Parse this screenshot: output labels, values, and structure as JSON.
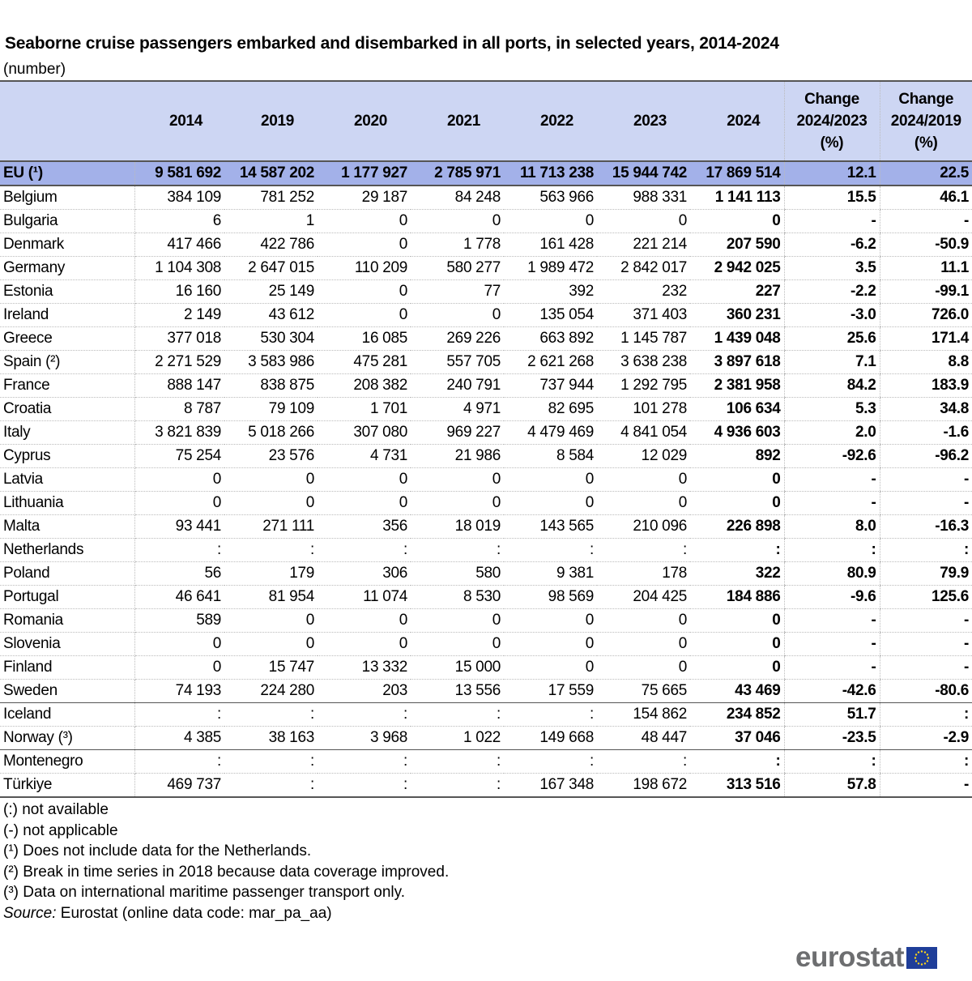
{
  "title": "Seaborne cruise passengers embarked and disembarked in all ports, in selected years, 2014-2024",
  "unit": "(number)",
  "colors": {
    "header_bg": "#cdd6f3",
    "eu_row_bg": "#a3b1e9",
    "logo_text": "#6d6e70",
    "flag": "#1f3e99"
  },
  "chart_data": {
    "type": "table",
    "columns": [
      "2014",
      "2019",
      "2020",
      "2021",
      "2022",
      "2023",
      "2024",
      "Change 2024/2023 (%)",
      "Change 2024/2019 (%)"
    ],
    "column_lines": [
      [
        "2014"
      ],
      [
        "2019"
      ],
      [
        "2020"
      ],
      [
        "2021"
      ],
      [
        "2022"
      ],
      [
        "2023"
      ],
      [
        "2024"
      ],
      [
        "Change",
        "2024/2023",
        "(%)"
      ],
      [
        "Change",
        "2024/2019",
        "(%)"
      ]
    ],
    "rows": [
      {
        "label": "EU (¹)",
        "values": [
          "9 581 692",
          "14 587 202",
          "1 177 927",
          "2 785 971",
          "11 713 238",
          "15 944 742",
          "17 869 514",
          "12.1",
          "22.5"
        ]
      },
      {
        "label": "Belgium",
        "values": [
          "384 109",
          "781 252",
          "29 187",
          "84 248",
          "563 966",
          "988 331",
          "1 141 113",
          "15.5",
          "46.1"
        ]
      },
      {
        "label": "Bulgaria",
        "values": [
          "6",
          "1",
          "0",
          "0",
          "0",
          "0",
          "0",
          "-",
          "-"
        ]
      },
      {
        "label": "Denmark",
        "values": [
          "417 466",
          "422 786",
          "0",
          "1 778",
          "161 428",
          "221 214",
          "207 590",
          "-6.2",
          "-50.9"
        ]
      },
      {
        "label": "Germany",
        "values": [
          "1 104 308",
          "2 647 015",
          "110 209",
          "580 277",
          "1 989 472",
          "2 842 017",
          "2 942 025",
          "3.5",
          "11.1"
        ]
      },
      {
        "label": "Estonia",
        "values": [
          "16 160",
          "25 149",
          "0",
          "77",
          "392",
          "232",
          "227",
          "-2.2",
          "-99.1"
        ]
      },
      {
        "label": "Ireland",
        "values": [
          "2 149",
          "43 612",
          "0",
          "0",
          "135 054",
          "371 403",
          "360 231",
          "-3.0",
          "726.0"
        ]
      },
      {
        "label": "Greece",
        "values": [
          "377 018",
          "530 304",
          "16 085",
          "269 226",
          "663 892",
          "1 145 787",
          "1 439 048",
          "25.6",
          "171.4"
        ]
      },
      {
        "label": "Spain (²)",
        "values": [
          "2 271 529",
          "3 583 986",
          "475 281",
          "557 705",
          "2 621 268",
          "3 638 238",
          "3 897 618",
          "7.1",
          "8.8"
        ]
      },
      {
        "label": "France",
        "values": [
          "888 147",
          "838 875",
          "208 382",
          "240 791",
          "737 944",
          "1 292 795",
          "2 381 958",
          "84.2",
          "183.9"
        ]
      },
      {
        "label": "Croatia",
        "values": [
          "8 787",
          "79 109",
          "1 701",
          "4 971",
          "82 695",
          "101 278",
          "106 634",
          "5.3",
          "34.8"
        ]
      },
      {
        "label": "Italy",
        "values": [
          "3 821 839",
          "5 018 266",
          "307 080",
          "969 227",
          "4 479 469",
          "4 841 054",
          "4 936 603",
          "2.0",
          "-1.6"
        ]
      },
      {
        "label": "Cyprus",
        "values": [
          "75 254",
          "23 576",
          "4 731",
          "21 986",
          "8 584",
          "12 029",
          "892",
          "-92.6",
          "-96.2"
        ]
      },
      {
        "label": "Latvia",
        "values": [
          "0",
          "0",
          "0",
          "0",
          "0",
          "0",
          "0",
          "-",
          "-"
        ]
      },
      {
        "label": "Lithuania",
        "values": [
          "0",
          "0",
          "0",
          "0",
          "0",
          "0",
          "0",
          "-",
          "-"
        ]
      },
      {
        "label": "Malta",
        "values": [
          "93 441",
          "271 111",
          "356",
          "18 019",
          "143 565",
          "210 096",
          "226 898",
          "8.0",
          "-16.3"
        ]
      },
      {
        "label": "Netherlands",
        "values": [
          ":",
          ":",
          ":",
          ":",
          ":",
          ":",
          ":",
          ":",
          ":"
        ]
      },
      {
        "label": "Poland",
        "values": [
          "56",
          "179",
          "306",
          "580",
          "9 381",
          "178",
          "322",
          "80.9",
          "79.9"
        ]
      },
      {
        "label": "Portugal",
        "values": [
          "46 641",
          "81 954",
          "11 074",
          "8 530",
          "98 569",
          "204 425",
          "184 886",
          "-9.6",
          "125.6"
        ]
      },
      {
        "label": "Romania",
        "values": [
          "589",
          "0",
          "0",
          "0",
          "0",
          "0",
          "0",
          "-",
          "-"
        ]
      },
      {
        "label": "Slovenia",
        "values": [
          "0",
          "0",
          "0",
          "0",
          "0",
          "0",
          "0",
          "-",
          "-"
        ]
      },
      {
        "label": "Finland",
        "values": [
          "0",
          "15 747",
          "13 332",
          "15 000",
          "0",
          "0",
          "0",
          "-",
          "-"
        ]
      },
      {
        "label": "Sweden",
        "values": [
          "74 193",
          "224 280",
          "203",
          "13 556",
          "17 559",
          "75 665",
          "43 469",
          "-42.6",
          "-80.6"
        ]
      },
      {
        "label": "Iceland",
        "values": [
          ":",
          ":",
          ":",
          ":",
          ":",
          "154 862",
          "234 852",
          "51.7",
          ":"
        ]
      },
      {
        "label": "Norway (³)",
        "values": [
          "4 385",
          "38 163",
          "3 968",
          "1 022",
          "149 668",
          "48 447",
          "37 046",
          "-23.5",
          "-2.9"
        ]
      },
      {
        "label": "Montenegro",
        "values": [
          ":",
          ":",
          ":",
          ":",
          ":",
          ":",
          ":",
          ":",
          ":"
        ]
      },
      {
        "label": "Türkiye",
        "values": [
          "469 737",
          ":",
          ":",
          ":",
          "167 348",
          "198 672",
          "313 516",
          "57.8",
          "-"
        ]
      }
    ]
  },
  "notes": [
    "(:) not available",
    "(-) not applicable",
    "(¹) Does not include data for the Netherlands.",
    "(²) Break in time series in 2018 because data coverage improved.",
    "(³) Data on international maritime passenger transport only."
  ],
  "source": {
    "label": "Source:",
    "text": "Eurostat (online data code: mar_pa_aa)"
  },
  "logo": {
    "text": "eurostat",
    "icon": "eu-flag-icon"
  }
}
